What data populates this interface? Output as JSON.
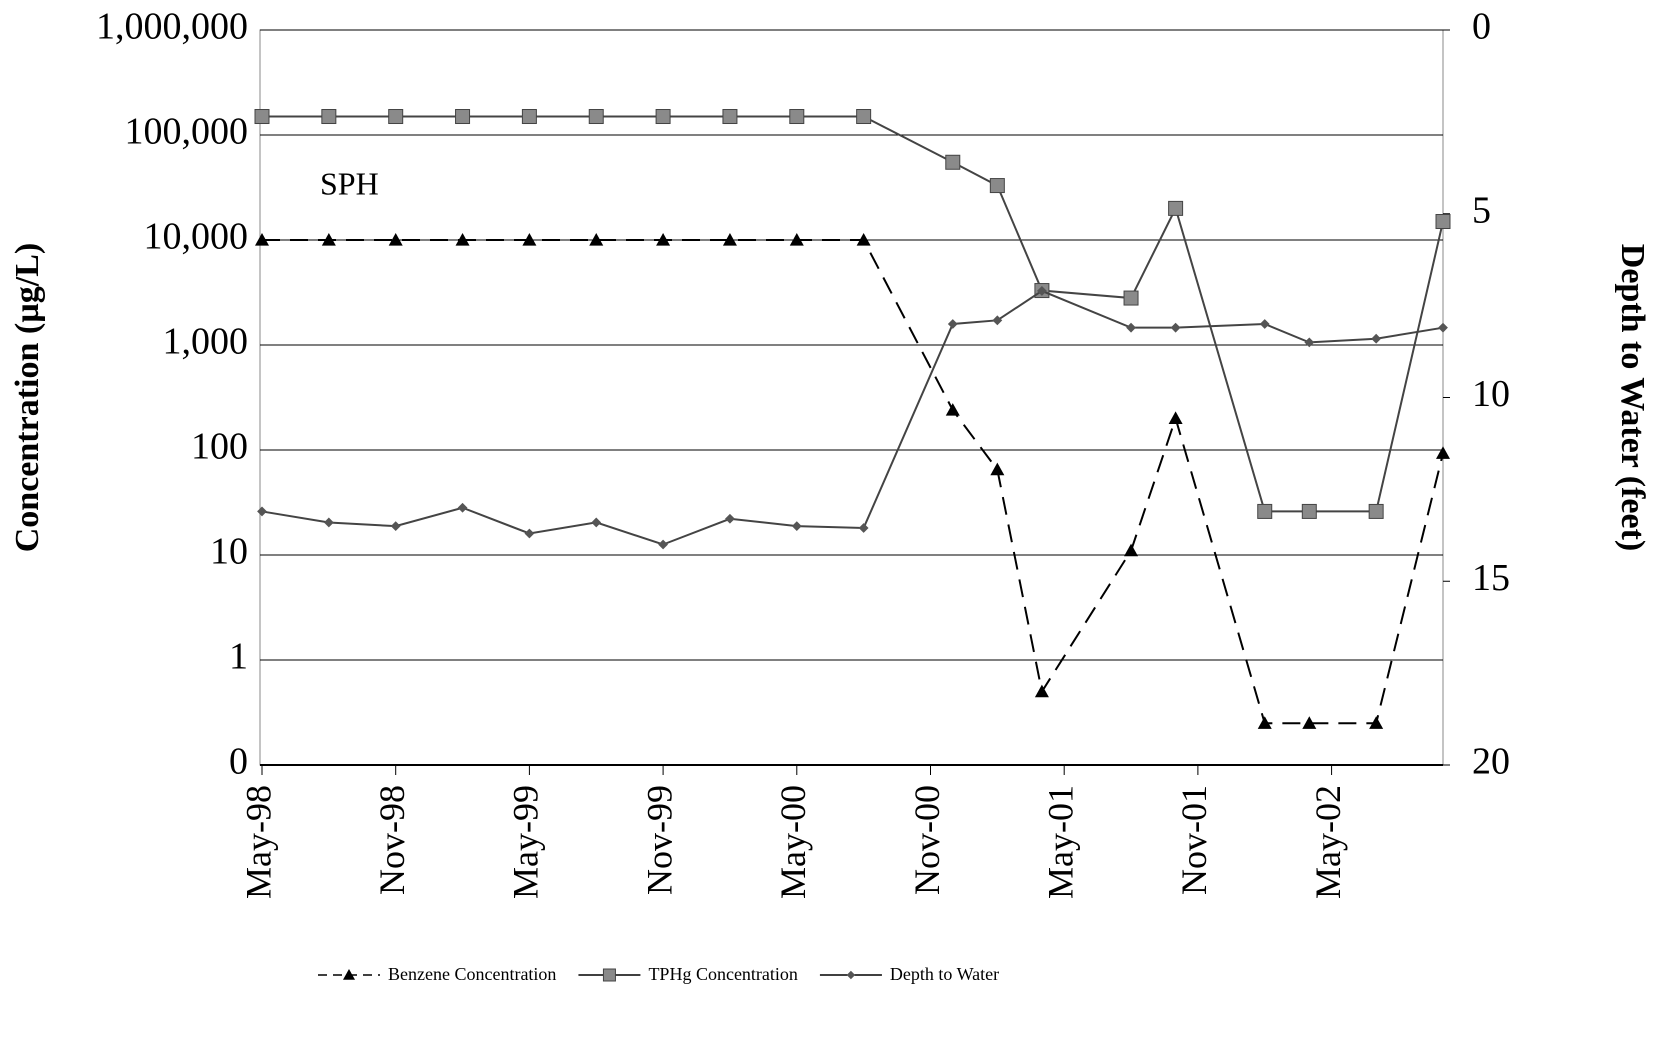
{
  "chart_data": {
    "type": "line",
    "ylabel": "Concentration (µg/L)",
    "y2label": "Depth to Water (feet)",
    "annotations": [
      {
        "text": "SPH"
      }
    ],
    "log_y": true,
    "grid": true,
    "legend": "bottom",
    "x": [
      "1998-05",
      "1998-08",
      "1998-11",
      "1999-02",
      "1999-05",
      "1999-08",
      "1999-11",
      "2000-02",
      "2000-05",
      "2000-08",
      "2000-12",
      "2001-02",
      "2001-04",
      "2001-08",
      "2001-10",
      "2002-02",
      "2002-04",
      "2002-07",
      "2002-10"
    ],
    "xlim": [
      "1998-05",
      "2002-10"
    ],
    "xticks": [
      {
        "value": "1998-05",
        "label": "May-98"
      },
      {
        "value": "1998-11",
        "label": "Nov-98"
      },
      {
        "value": "1999-05",
        "label": "May-99"
      },
      {
        "value": "1999-11",
        "label": "Nov-99"
      },
      {
        "value": "2000-05",
        "label": "May-00"
      },
      {
        "value": "2000-11",
        "label": "Nov-00"
      },
      {
        "value": "2001-05",
        "label": "May-01"
      },
      {
        "value": "2001-11",
        "label": "Nov-01"
      },
      {
        "value": "2002-05",
        "label": "May-02"
      }
    ],
    "ylim": [
      0.1,
      1000000
    ],
    "yticks": [
      {
        "value": 0.1,
        "label": "0"
      },
      1,
      10,
      100,
      {
        "value": 1000,
        "label": "1,000"
      },
      {
        "value": 10000,
        "label": "10,000"
      },
      {
        "value": 100000,
        "label": "100,000"
      },
      {
        "value": 1000000,
        "label": "1,000,000"
      }
    ],
    "y2lim": [
      20,
      0
    ],
    "y2ticks": [
      0,
      5,
      10,
      15,
      20
    ],
    "series": [
      {
        "name": "Benzene Concentration",
        "color": "#000000",
        "line_style": "dashed",
        "marker": "triangle",
        "values": [
          10000,
          10000,
          10000,
          10000,
          10000,
          10000,
          10000,
          10000,
          10000,
          10000,
          240,
          65,
          0.5,
          11,
          200,
          0.25,
          0.25,
          0.25,
          93
        ]
      },
      {
        "name": "TPHg Concentration",
        "color": "#8a8a8a",
        "line_style": "solid",
        "marker": "square",
        "values": [
          150000,
          150000,
          150000,
          150000,
          150000,
          150000,
          150000,
          150000,
          150000,
          150000,
          55000,
          33000,
          3300,
          2800,
          20000,
          26,
          26,
          26,
          15000
        ]
      },
      {
        "name": "Depth to Water",
        "color": "#555555",
        "line_style": "solid",
        "marker": "diamond",
        "axis": "y2",
        "values": [
          13.1,
          13.4,
          13.5,
          13.0,
          13.7,
          13.4,
          14.0,
          13.3,
          13.5,
          13.55,
          8.0,
          7.9,
          7.1,
          8.1,
          8.1,
          8.0,
          8.5,
          8.4,
          8.1
        ]
      }
    ]
  }
}
